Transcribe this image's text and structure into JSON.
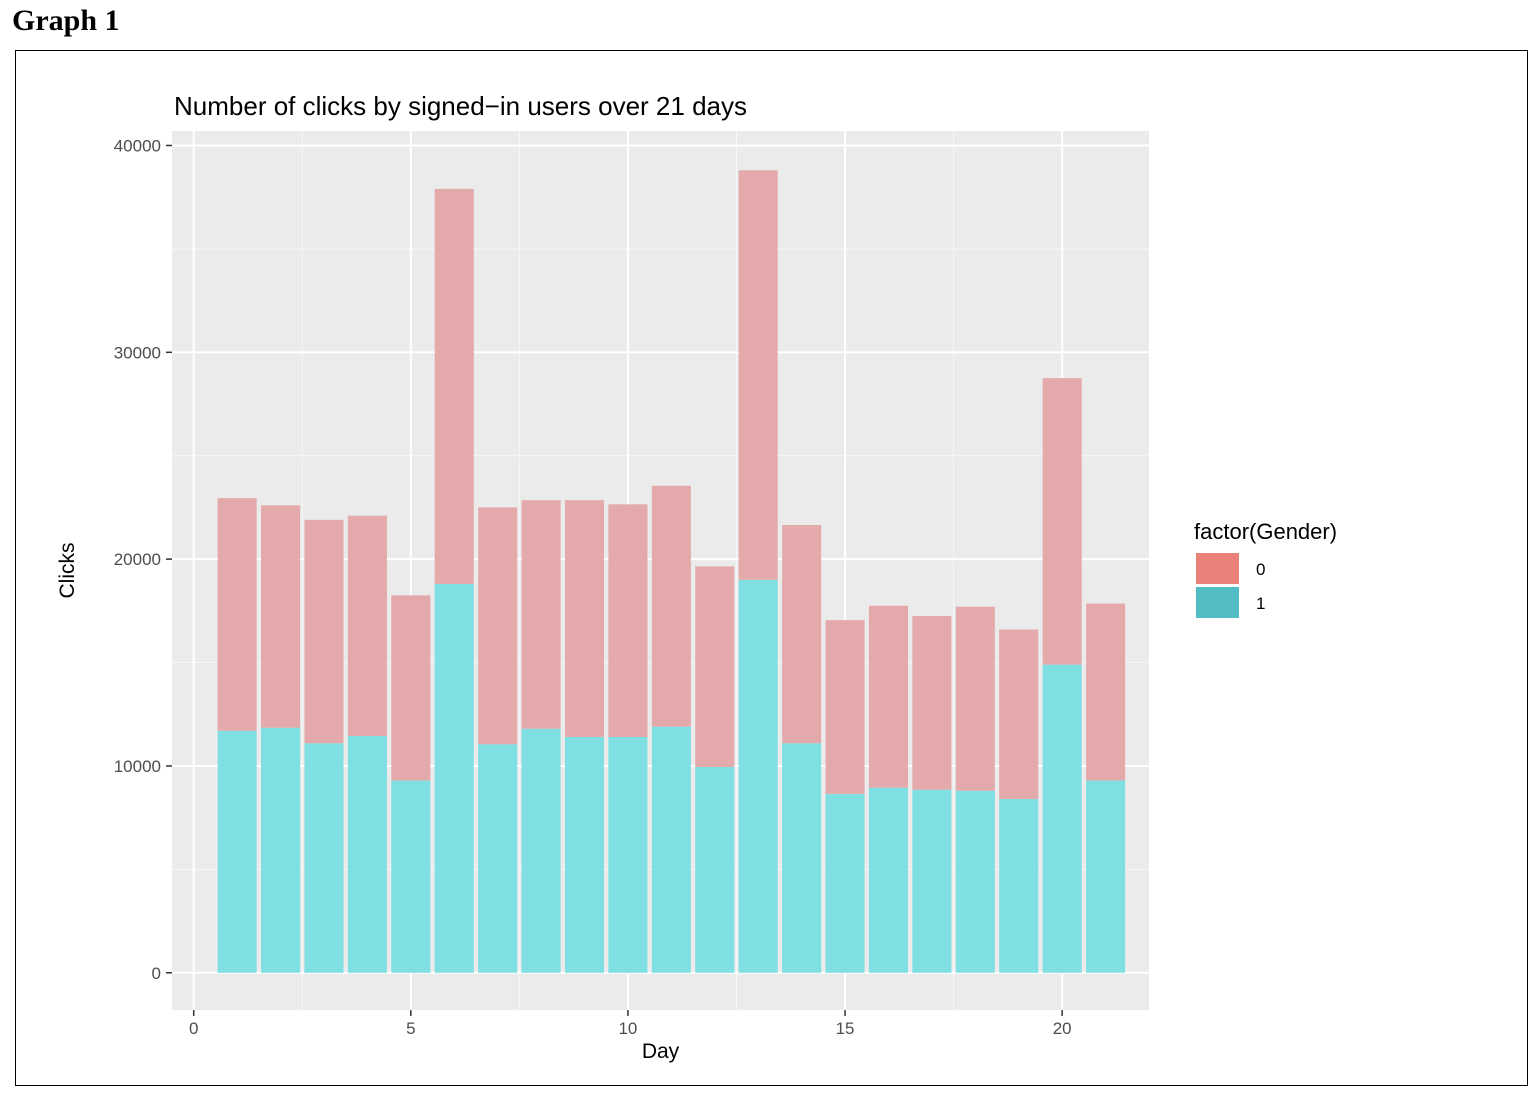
{
  "heading": "Graph 1",
  "chart_data": {
    "type": "bar",
    "stacked": true,
    "title": "Number of clicks by signed−in users over 21 days",
    "xlabel": "Day",
    "ylabel": "Clicks",
    "xlim": [
      -0.5,
      22
    ],
    "ylim": [
      -1800,
      40700
    ],
    "x_ticks": [
      0,
      5,
      10,
      15,
      20
    ],
    "y_ticks": [
      0,
      10000,
      20000,
      30000,
      40000
    ],
    "x_tick_labels": [
      "0",
      "5",
      "10",
      "15",
      "20"
    ],
    "y_tick_labels": [
      "0",
      "10000",
      "20000",
      "30000",
      "40000"
    ],
    "grid": true,
    "legend": {
      "title": "factor(Gender)",
      "placement": "right"
    },
    "x": [
      1,
      2,
      3,
      4,
      5,
      6,
      7,
      8,
      9,
      10,
      11,
      12,
      13,
      14,
      15,
      16,
      17,
      18,
      19,
      20,
      21
    ],
    "series": [
      {
        "name": "1",
        "color": "#7fdfe2",
        "legend_color": "#52bdc4",
        "values": [
          11700,
          11850,
          11100,
          11450,
          9300,
          18800,
          11050,
          11800,
          11400,
          11400,
          11900,
          9950,
          19000,
          11100,
          8650,
          8950,
          8850,
          8800,
          8400,
          14900,
          9300
        ]
      },
      {
        "name": "0",
        "color": "#e4aaab",
        "legend_color": "#e98179",
        "values": [
          11250,
          10750,
          10800,
          10650,
          8950,
          19100,
          11450,
          11050,
          11450,
          11250,
          11650,
          9700,
          19800,
          10550,
          8400,
          8800,
          8400,
          8900,
          8200,
          13850,
          8550
        ]
      }
    ]
  }
}
